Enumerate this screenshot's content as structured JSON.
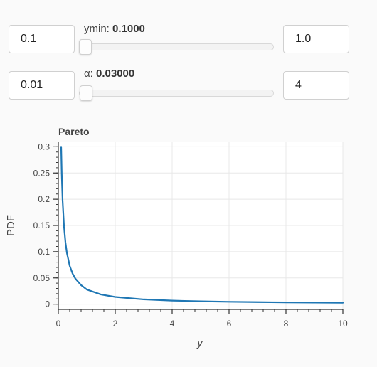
{
  "controls": {
    "ymin": {
      "label": "ymin: ",
      "value_text": "0.1000",
      "start": "0.1",
      "end": "1.0",
      "fraction": 0.0
    },
    "alpha": {
      "label": "α: ",
      "value_text": "0.03000",
      "start": "0.01",
      "end": "4",
      "fraction": 0.005
    }
  },
  "chart_data": {
    "type": "line",
    "title": "Pareto",
    "xlabel": "y",
    "ylabel": "PDF",
    "xlim": [
      0,
      10
    ],
    "ylim": [
      -0.01,
      0.31
    ],
    "grid": true,
    "x_ticks": [
      0,
      2,
      4,
      6,
      8,
      10
    ],
    "x_tick_labels": [
      "0",
      "2",
      "4",
      "6",
      "8",
      "10"
    ],
    "y_ticks": [
      0,
      0.05,
      0.1,
      0.15,
      0.2,
      0.25,
      0.3
    ],
    "y_tick_labels": [
      "0",
      "0.05",
      "0.1",
      "0.15",
      "0.2",
      "0.25",
      "0.3"
    ],
    "line_color": "#1f77b4",
    "series": [
      {
        "x": [
          0.1,
          0.12,
          0.15,
          0.2,
          0.25,
          0.3,
          0.4,
          0.5,
          0.6,
          0.8,
          1.0,
          1.5,
          2.0,
          3.0,
          4.0,
          5.0,
          6.0,
          7.0,
          8.0,
          9.0,
          10.0
        ],
        "values": [
          0.3,
          0.248,
          0.198,
          0.148,
          0.118,
          0.098,
          0.073,
          0.0584,
          0.0486,
          0.0363,
          0.0279,
          0.0184,
          0.0137,
          0.0091,
          0.0068,
          0.0054,
          0.0045,
          0.0039,
          0.0034,
          0.003,
          0.0027
        ]
      }
    ]
  }
}
